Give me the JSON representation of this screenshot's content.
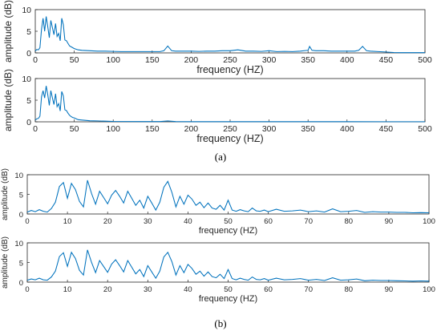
{
  "figure": {
    "caption_a": "(a)",
    "caption_b": "(b)"
  },
  "colors": {
    "series": "#0072BD",
    "axis": "#262626"
  },
  "chart_data": [
    {
      "type": "line",
      "panel": "a-top",
      "xlabel": "frequency (HZ)",
      "ylabel": "amplitude (dB)",
      "xlim": [
        0,
        500
      ],
      "ylim": [
        0,
        10
      ],
      "xticks": [
        0,
        50,
        100,
        150,
        200,
        250,
        300,
        350,
        400,
        450,
        500
      ],
      "yticks": [
        0,
        5,
        10
      ],
      "grid": false,
      "series": [
        {
          "x": [
            0,
            2,
            4,
            6,
            8,
            10,
            12,
            14,
            16,
            18,
            20,
            22,
            24,
            26,
            28,
            30,
            32,
            34,
            36,
            38,
            40,
            42,
            44,
            46,
            48,
            50,
            55,
            60,
            70,
            80,
            90,
            100,
            110,
            120,
            130,
            140,
            150,
            160,
            165,
            170,
            175,
            180,
            190,
            200,
            210,
            220,
            230,
            240,
            250,
            260,
            270,
            280,
            290,
            300,
            310,
            320,
            330,
            340,
            350,
            352,
            355,
            360,
            370,
            380,
            390,
            400,
            410,
            415,
            420,
            425,
            430,
            440,
            450,
            460,
            470,
            480,
            490,
            500
          ],
          "y": [
            0.4,
            0.8,
            0.7,
            1.2,
            5.5,
            8.0,
            5.0,
            8.4,
            6.0,
            3.5,
            7.5,
            5.8,
            4.2,
            6.8,
            3.8,
            4.5,
            2.8,
            8.0,
            6.5,
            3.0,
            2.8,
            2.2,
            1.6,
            1.4,
            1.2,
            1.0,
            0.7,
            0.6,
            0.5,
            0.4,
            0.4,
            0.35,
            0.3,
            0.3,
            0.3,
            0.3,
            0.3,
            0.3,
            0.5,
            1.6,
            0.5,
            0.4,
            0.4,
            0.4,
            0.35,
            0.4,
            0.4,
            0.5,
            0.5,
            0.7,
            0.4,
            0.4,
            0.35,
            0.5,
            0.3,
            0.35,
            0.3,
            0.4,
            0.6,
            1.5,
            0.6,
            0.5,
            0.5,
            0.4,
            0.4,
            0.4,
            0.4,
            0.6,
            1.5,
            0.5,
            0.4,
            0.3,
            0.2,
            0.1,
            0.05,
            0.05,
            0.05,
            0.05
          ]
        }
      ]
    },
    {
      "type": "line",
      "panel": "a-bottom",
      "xlabel": "frequency (HZ)",
      "ylabel": "amplitude (dB)",
      "xlim": [
        0,
        500
      ],
      "ylim": [
        0,
        10
      ],
      "xticks": [
        0,
        50,
        100,
        150,
        200,
        250,
        300,
        350,
        400,
        450,
        500
      ],
      "yticks": [
        0,
        5,
        10
      ],
      "grid": false,
      "series": [
        {
          "x": [
            0,
            2,
            4,
            6,
            8,
            10,
            12,
            14,
            16,
            18,
            20,
            22,
            24,
            26,
            28,
            30,
            32,
            34,
            36,
            38,
            40,
            42,
            44,
            46,
            48,
            50,
            55,
            60,
            70,
            80,
            90,
            100,
            120,
            140,
            160,
            170,
            180,
            200,
            250,
            300,
            350,
            400,
            450,
            500
          ],
          "y": [
            0.4,
            0.7,
            0.8,
            1.3,
            5.8,
            7.2,
            5.5,
            8.3,
            6.2,
            3.8,
            7.2,
            5.5,
            4.0,
            6.5,
            3.5,
            4.2,
            2.5,
            7.0,
            6.0,
            2.8,
            2.6,
            2.0,
            1.5,
            1.2,
            1.0,
            0.9,
            0.5,
            0.4,
            0.25,
            0.2,
            0.15,
            0.1,
            0.08,
            0.06,
            0.05,
            0.2,
            0.05,
            0.04,
            0.04,
            0.03,
            0.03,
            0.03,
            0.02,
            0.02
          ]
        }
      ]
    },
    {
      "type": "line",
      "panel": "b-top",
      "xlabel": "frequency (HZ)",
      "ylabel": "amplitude (dB)",
      "xlim": [
        0,
        100
      ],
      "ylim": [
        0,
        10
      ],
      "xticks": [
        0,
        10,
        20,
        30,
        40,
        50,
        60,
        70,
        80,
        90,
        100
      ],
      "yticks": [
        0,
        5,
        10
      ],
      "grid": false,
      "series": [
        {
          "x": [
            0,
            1,
            2,
            3,
            4,
            5,
            6,
            7,
            8,
            9,
            10,
            11,
            12,
            13,
            14,
            15,
            16,
            17,
            18,
            19,
            20,
            21,
            22,
            23,
            24,
            25,
            26,
            27,
            28,
            29,
            30,
            31,
            32,
            33,
            34,
            35,
            36,
            37,
            38,
            39,
            40,
            41,
            42,
            43,
            44,
            45,
            46,
            47,
            48,
            49,
            50,
            51,
            52,
            53,
            54,
            55,
            56,
            57,
            58,
            59,
            60,
            62,
            64,
            66,
            68,
            70,
            72,
            74,
            76,
            78,
            80,
            82,
            84,
            86,
            88,
            90,
            92,
            94,
            96,
            98,
            100
          ],
          "y": [
            0.5,
            0.9,
            0.6,
            1.1,
            0.7,
            0.5,
            1.4,
            3.0,
            7.0,
            8.0,
            4.0,
            7.8,
            6.2,
            3.2,
            1.8,
            8.6,
            5.2,
            2.5,
            5.8,
            4.2,
            2.6,
            4.8,
            6.0,
            4.5,
            2.8,
            5.8,
            4.0,
            2.2,
            3.5,
            1.5,
            4.5,
            2.8,
            1.0,
            3.0,
            6.8,
            8.3,
            5.5,
            1.8,
            4.5,
            2.5,
            4.8,
            3.8,
            2.2,
            3.0,
            1.6,
            2.8,
            1.5,
            1.2,
            2.2,
            1.0,
            3.5,
            1.0,
            0.7,
            1.1,
            0.8,
            0.6,
            1.5,
            0.8,
            0.7,
            1.0,
            0.6,
            1.2,
            0.7,
            0.8,
            1.0,
            0.6,
            0.8,
            0.5,
            1.3,
            0.6,
            0.7,
            0.9,
            0.4,
            0.6,
            0.5,
            0.5,
            0.4,
            0.4,
            0.3,
            0.35,
            0.3
          ]
        }
      ]
    },
    {
      "type": "line",
      "panel": "b-bottom",
      "xlabel": "frequency (HZ)",
      "ylabel": "amplitude (dB)",
      "xlim": [
        0,
        100
      ],
      "ylim": [
        0,
        10
      ],
      "xticks": [
        0,
        10,
        20,
        30,
        40,
        50,
        60,
        70,
        80,
        90,
        100
      ],
      "yticks": [
        0,
        5,
        10
      ],
      "grid": false,
      "series": [
        {
          "x": [
            0,
            1,
            2,
            3,
            4,
            5,
            6,
            7,
            8,
            9,
            10,
            11,
            12,
            13,
            14,
            15,
            16,
            17,
            18,
            19,
            20,
            21,
            22,
            23,
            24,
            25,
            26,
            27,
            28,
            29,
            30,
            31,
            32,
            33,
            34,
            35,
            36,
            37,
            38,
            39,
            40,
            41,
            42,
            43,
            44,
            45,
            46,
            47,
            48,
            49,
            50,
            51,
            52,
            53,
            54,
            55,
            56,
            57,
            58,
            59,
            60,
            62,
            64,
            66,
            68,
            70,
            72,
            74,
            76,
            78,
            80,
            82,
            84,
            86,
            88,
            90,
            92,
            94,
            96,
            98,
            100
          ],
          "y": [
            0.5,
            0.8,
            0.6,
            1.0,
            0.6,
            0.5,
            1.3,
            2.8,
            6.5,
            7.5,
            4.0,
            7.6,
            6.0,
            3.0,
            1.8,
            8.2,
            5.0,
            2.4,
            5.5,
            4.0,
            2.5,
            4.6,
            5.7,
            4.2,
            2.6,
            5.5,
            3.8,
            2.1,
            3.2,
            1.4,
            4.2,
            2.6,
            1.0,
            2.8,
            6.4,
            7.6,
            5.2,
            1.8,
            4.2,
            2.4,
            4.5,
            3.5,
            2.0,
            2.8,
            1.5,
            2.6,
            1.4,
            1.1,
            2.0,
            0.9,
            3.2,
            0.9,
            0.6,
            1.0,
            0.7,
            0.5,
            1.3,
            0.7,
            0.6,
            0.9,
            0.5,
            1.0,
            0.6,
            0.7,
            0.9,
            0.5,
            0.7,
            0.4,
            1.1,
            0.5,
            0.6,
            0.8,
            0.35,
            0.5,
            0.4,
            0.4,
            0.35,
            0.3,
            0.25,
            0.3,
            0.25
          ]
        }
      ]
    }
  ]
}
